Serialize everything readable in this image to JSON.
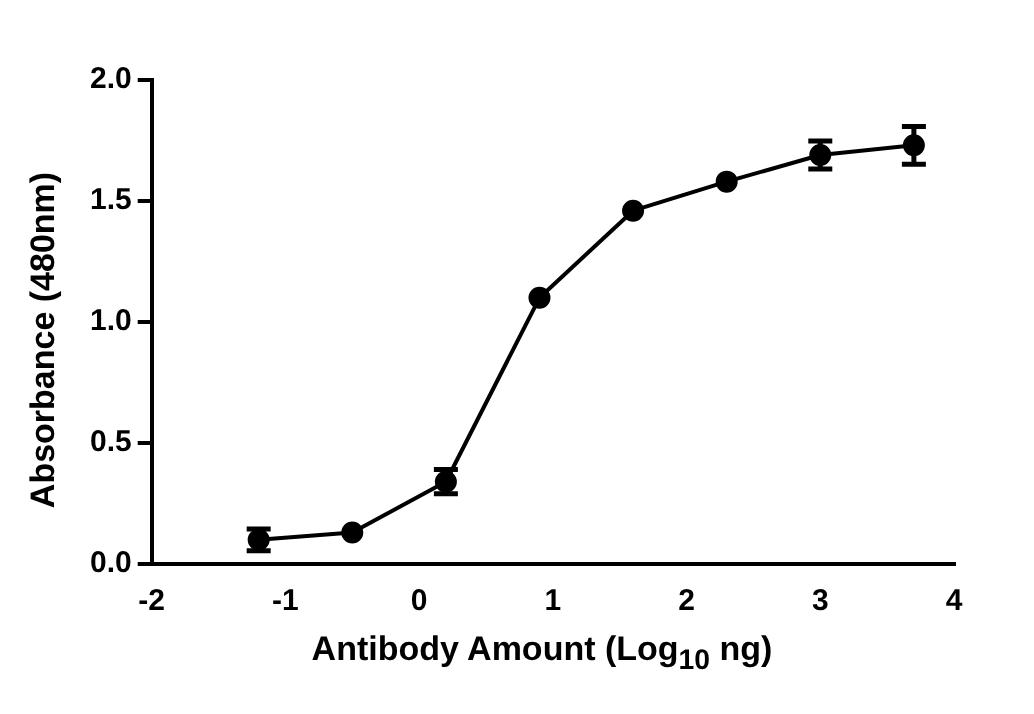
{
  "chart_data": {
    "type": "line",
    "xlabel": "Antibody Amount (Log$_{10}$ ng)",
    "ylabel": "Absorbance (480nm)",
    "x": [
      -1.2,
      -0.5,
      0.2,
      0.9,
      1.6,
      2.3,
      3.0,
      3.7
    ],
    "series": [
      {
        "color": "#000000",
        "values": [
          0.1,
          0.13,
          0.34,
          1.1,
          1.46,
          1.58,
          1.69,
          1.73
        ],
        "errors": [
          0.045,
          null,
          0.05,
          null,
          null,
          null,
          0.058,
          0.078
        ]
      }
    ],
    "xlim": [
      -2,
      4
    ],
    "xticks": [
      -2,
      -1,
      0,
      1,
      2,
      3,
      4
    ],
    "ylim": [
      0,
      2
    ],
    "yticks": [
      {
        "value": 0,
        "label": "0.0"
      },
      0.5,
      {
        "value": 1,
        "label": "1.0"
      },
      1.5,
      {
        "value": 2,
        "label": "2.0"
      }
    ],
    "grid": false,
    "legend": false,
    "marker": "circle",
    "line_style": "solid"
  }
}
